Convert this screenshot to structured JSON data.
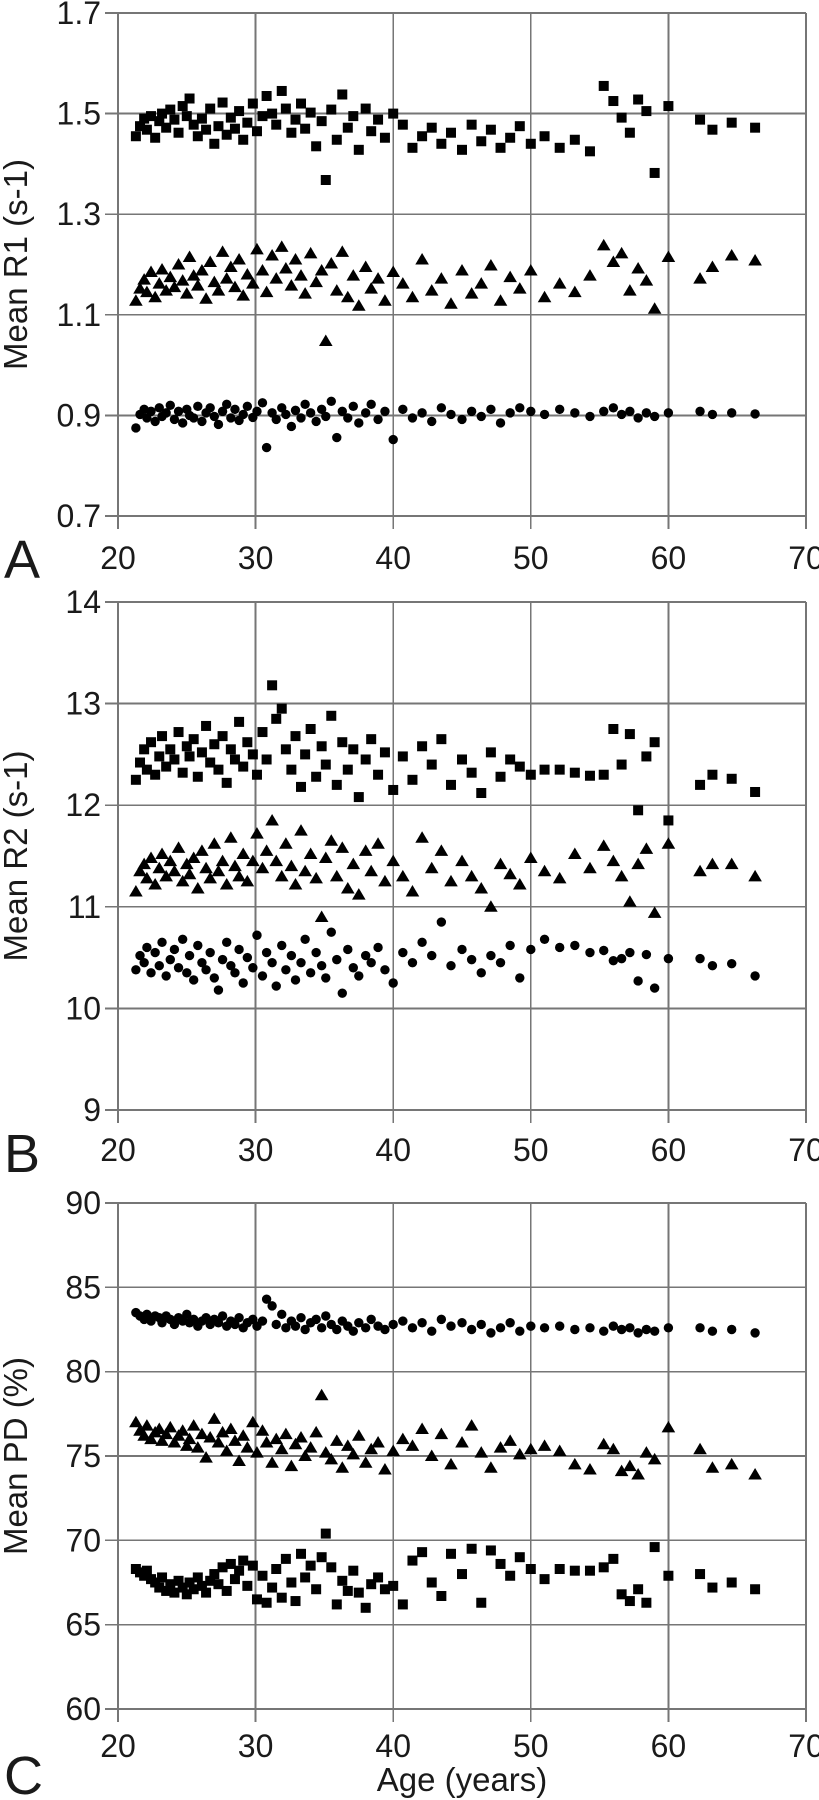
{
  "figure": {
    "background": "#ffffff",
    "marker_color": "#000000",
    "grid_color": "#767676",
    "text_color": "#1a1a1a",
    "x_axis_label": "Age (years)",
    "panel_letters": [
      "A",
      "B",
      "C"
    ]
  },
  "chart_data": {
    "type": "scatter",
    "xlabel": "Age (years)",
    "xlim": [
      20,
      70
    ],
    "xticks": [
      20,
      30,
      40,
      50,
      60,
      70
    ],
    "grid": true,
    "legend": "none",
    "ages": [
      21.3,
      21.6,
      21.9,
      22.1,
      22.4,
      22.7,
      23.0,
      23.2,
      23.5,
      23.8,
      24.1,
      24.4,
      24.7,
      25.0,
      25.2,
      25.5,
      25.8,
      26.1,
      26.4,
      26.7,
      27.0,
      27.3,
      27.6,
      27.9,
      28.2,
      28.5,
      28.8,
      29.1,
      29.4,
      29.8,
      30.1,
      30.5,
      30.8,
      31.2,
      31.5,
      31.9,
      32.2,
      32.6,
      32.9,
      33.3,
      33.6,
      34.0,
      34.4,
      34.8,
      35.1,
      35.5,
      35.9,
      36.3,
      36.7,
      37.1,
      37.5,
      38.0,
      38.4,
      38.9,
      39.4,
      40.0,
      40.7,
      41.4,
      42.1,
      42.8,
      43.5,
      44.2,
      45.0,
      45.7,
      46.4,
      47.1,
      47.8,
      48.5,
      49.2,
      50.0,
      51.0,
      52.1,
      53.2,
      54.3,
      55.3,
      56.0,
      56.6,
      57.2,
      57.8,
      58.4,
      59.0,
      60.0,
      62.3,
      63.2,
      64.6,
      66.3
    ],
    "panels": [
      {
        "label": "A",
        "ylabel": "Mean R1 (s-1)",
        "ylim": [
          0.7,
          1.7
        ],
        "yticks": [
          0.7,
          0.9,
          1.1,
          1.3,
          1.5,
          1.7
        ],
        "ytick_format": 1,
        "series": [
          {
            "marker": "square",
            "y": [
              1.455,
              1.475,
              1.49,
              1.468,
              1.495,
              1.452,
              1.485,
              1.5,
              1.472,
              1.508,
              1.488,
              1.462,
              1.515,
              1.495,
              1.53,
              1.478,
              1.455,
              1.49,
              1.468,
              1.51,
              1.44,
              1.475,
              1.522,
              1.458,
              1.492,
              1.47,
              1.505,
              1.448,
              1.482,
              1.52,
              1.465,
              1.495,
              1.535,
              1.5,
              1.478,
              1.545,
              1.51,
              1.462,
              1.488,
              1.52,
              1.47,
              1.502,
              1.435,
              1.485,
              1.368,
              1.508,
              1.448,
              1.538,
              1.472,
              1.495,
              1.428,
              1.51,
              1.465,
              1.488,
              1.452,
              1.5,
              1.478,
              1.432,
              1.455,
              1.472,
              1.44,
              1.462,
              1.428,
              1.478,
              1.445,
              1.468,
              1.432,
              1.452,
              1.475,
              1.44,
              1.455,
              1.432,
              1.448,
              1.425,
              1.555,
              1.525,
              1.492,
              1.462,
              1.528,
              1.505,
              1.382,
              1.515,
              1.488,
              1.468,
              1.482,
              1.472
            ]
          },
          {
            "marker": "triangle",
            "y": [
              1.128,
              1.152,
              1.17,
              1.145,
              1.185,
              1.135,
              1.162,
              1.19,
              1.148,
              1.175,
              1.155,
              1.2,
              1.168,
              1.142,
              1.215,
              1.178,
              1.158,
              1.188,
              1.132,
              1.205,
              1.165,
              1.148,
              1.225,
              1.172,
              1.195,
              1.155,
              1.21,
              1.138,
              1.18,
              1.162,
              1.23,
              1.188,
              1.145,
              1.218,
              1.172,
              1.235,
              1.192,
              1.158,
              1.21,
              1.178,
              1.142,
              1.222,
              1.165,
              1.188,
              1.048,
              1.202,
              1.148,
              1.225,
              1.135,
              1.178,
              1.118,
              1.195,
              1.152,
              1.172,
              1.128,
              1.185,
              1.162,
              1.135,
              1.21,
              1.148,
              1.172,
              1.122,
              1.188,
              1.142,
              1.162,
              1.198,
              1.128,
              1.175,
              1.152,
              1.188,
              1.135,
              1.162,
              1.145,
              1.178,
              1.238,
              1.205,
              1.222,
              1.148,
              1.192,
              1.168,
              1.112,
              1.215,
              1.172,
              1.195,
              1.218,
              1.208
            ]
          },
          {
            "marker": "circle",
            "y": [
              0.875,
              0.902,
              0.912,
              0.895,
              0.908,
              0.888,
              0.915,
              0.898,
              0.905,
              0.92,
              0.892,
              0.908,
              0.885,
              0.912,
              0.9,
              0.895,
              0.918,
              0.888,
              0.905,
              0.915,
              0.898,
              0.882,
              0.908,
              0.922,
              0.895,
              0.912,
              0.89,
              0.902,
              0.918,
              0.896,
              0.908,
              0.925,
              0.836,
              0.905,
              0.892,
              0.915,
              0.902,
              0.878,
              0.91,
              0.895,
              0.922,
              0.905,
              0.888,
              0.912,
              0.898,
              0.928,
              0.856,
              0.908,
              0.895,
              0.918,
              0.885,
              0.905,
              0.922,
              0.892,
              0.908,
              0.852,
              0.912,
              0.895,
              0.905,
              0.888,
              0.915,
              0.902,
              0.892,
              0.908,
              0.898,
              0.912,
              0.885,
              0.905,
              0.915,
              0.908,
              0.902,
              0.912,
              0.905,
              0.898,
              0.908,
              0.915,
              0.902,
              0.908,
              0.895,
              0.905,
              0.898,
              0.905,
              0.908,
              0.902,
              0.905,
              0.903
            ]
          }
        ]
      },
      {
        "label": "B",
        "ylabel": "Mean R2 (s-1)",
        "ylim": [
          9,
          14
        ],
        "yticks": [
          9,
          10,
          11,
          12,
          13,
          14
        ],
        "ytick_format": 0,
        "series": [
          {
            "marker": "square",
            "y": [
              12.25,
              12.42,
              12.55,
              12.35,
              12.62,
              12.3,
              12.48,
              12.68,
              12.38,
              12.55,
              12.45,
              12.72,
              12.32,
              12.58,
              12.48,
              12.65,
              12.28,
              12.52,
              12.78,
              12.42,
              12.6,
              12.35,
              12.68,
              12.22,
              12.55,
              12.45,
              12.82,
              12.38,
              12.62,
              12.5,
              12.3,
              12.72,
              12.45,
              13.18,
              12.85,
              12.95,
              12.55,
              12.35,
              12.68,
              12.18,
              12.5,
              12.75,
              12.28,
              12.58,
              12.4,
              12.88,
              12.2,
              12.62,
              12.35,
              12.55,
              12.08,
              12.45,
              12.65,
              12.3,
              12.52,
              12.15,
              12.48,
              12.25,
              12.58,
              12.4,
              12.65,
              12.2,
              12.45,
              12.32,
              12.12,
              12.52,
              12.28,
              12.45,
              12.38,
              12.3,
              12.35,
              12.35,
              12.32,
              12.29,
              12.3,
              12.75,
              12.4,
              12.7,
              11.95,
              12.48,
              12.62,
              11.85,
              12.2,
              12.3,
              12.26,
              12.13
            ]
          },
          {
            "marker": "triangle",
            "y": [
              11.15,
              11.35,
              11.42,
              11.28,
              11.48,
              11.22,
              11.38,
              11.52,
              11.3,
              11.45,
              11.35,
              11.58,
              11.25,
              11.42,
              11.32,
              11.48,
              11.18,
              11.55,
              11.38,
              11.28,
              11.62,
              11.35,
              11.45,
              11.22,
              11.68,
              11.4,
              11.3,
              11.52,
              11.25,
              11.45,
              11.72,
              11.38,
              11.55,
              11.85,
              11.45,
              11.3,
              11.62,
              11.4,
              11.22,
              11.75,
              11.35,
              11.52,
              11.28,
              10.9,
              11.48,
              11.65,
              11.3,
              11.58,
              11.18,
              11.42,
              11.12,
              11.55,
              11.35,
              11.62,
              11.25,
              11.45,
              11.3,
              11.15,
              11.68,
              11.38,
              11.55,
              11.25,
              11.45,
              11.3,
              11.18,
              11.0,
              11.42,
              11.32,
              11.22,
              11.48,
              11.35,
              11.28,
              11.52,
              11.38,
              11.6,
              11.45,
              11.3,
              11.05,
              11.42,
              11.57,
              10.94,
              11.62,
              11.35,
              11.42,
              11.42,
              11.3
            ]
          },
          {
            "marker": "circle",
            "y": [
              10.38,
              10.52,
              10.45,
              10.6,
              10.35,
              10.55,
              10.42,
              10.65,
              10.32,
              10.48,
              10.58,
              10.4,
              10.68,
              10.35,
              10.52,
              10.28,
              10.62,
              10.45,
              10.38,
              10.55,
              10.3,
              10.18,
              10.48,
              10.65,
              10.42,
              10.35,
              10.58,
              10.25,
              10.5,
              10.4,
              10.72,
              10.32,
              10.55,
              10.45,
              10.22,
              10.62,
              10.38,
              10.52,
              10.28,
              10.45,
              10.68,
              10.35,
              10.55,
              10.42,
              10.3,
              10.75,
              10.48,
              10.15,
              10.58,
              10.4,
              10.32,
              10.52,
              10.45,
              10.6,
              10.38,
              10.25,
              10.55,
              10.45,
              10.65,
              10.52,
              10.85,
              10.42,
              10.58,
              10.48,
              10.35,
              10.52,
              10.45,
              10.62,
              10.3,
              10.58,
              10.68,
              10.6,
              10.62,
              10.55,
              10.57,
              10.47,
              10.49,
              10.55,
              10.27,
              10.53,
              10.2,
              10.49,
              10.49,
              10.42,
              10.44,
              10.32
            ]
          }
        ]
      },
      {
        "label": "C",
        "ylabel": "Mean PD (%)",
        "ylim": [
          60,
          90
        ],
        "yticks": [
          60,
          65,
          70,
          75,
          80,
          85,
          90
        ],
        "ytick_format": 0,
        "series": [
          {
            "marker": "circle",
            "y": [
              83.5,
              83.3,
              83.1,
              83.4,
              83.0,
              83.3,
              83.2,
              82.9,
              83.3,
              83.1,
              82.8,
              83.2,
              83.0,
              83.4,
              82.9,
              83.1,
              82.7,
              83.0,
              83.2,
              82.8,
              83.1,
              82.9,
              83.3,
              82.7,
              83.0,
              82.8,
              83.2,
              82.6,
              82.9,
              83.1,
              82.7,
              83.0,
              84.3,
              83.9,
              82.8,
              83.4,
              82.6,
              83.0,
              82.7,
              83.2,
              82.5,
              82.9,
              83.1,
              82.6,
              83.3,
              82.8,
              82.5,
              83.0,
              82.7,
              82.4,
              82.9,
              82.6,
              83.1,
              82.7,
              82.5,
              82.8,
              83.0,
              82.6,
              82.9,
              82.4,
              83.1,
              82.7,
              82.9,
              82.5,
              82.8,
              82.3,
              82.6,
              82.9,
              82.4,
              82.7,
              82.6,
              82.7,
              82.5,
              82.6,
              82.4,
              82.7,
              82.5,
              82.6,
              82.3,
              82.5,
              82.4,
              82.6,
              82.6,
              82.4,
              82.5,
              82.3
            ]
          },
          {
            "marker": "triangle",
            "y": [
              77.0,
              76.5,
              76.2,
              76.8,
              76.0,
              76.4,
              76.6,
              75.9,
              76.3,
              76.7,
              75.8,
              76.2,
              76.5,
              75.6,
              76.0,
              76.8,
              75.5,
              76.3,
              74.9,
              76.1,
              77.2,
              75.8,
              76.4,
              75.3,
              76.6,
              75.9,
              74.7,
              76.2,
              75.5,
              77.0,
              75.2,
              76.5,
              75.8,
              74.6,
              76.0,
              75.4,
              76.3,
              74.4,
              75.7,
              76.1,
              75.0,
              75.5,
              76.4,
              78.6,
              75.2,
              74.8,
              75.9,
              74.3,
              75.6,
              75.1,
              76.2,
              74.6,
              75.4,
              75.8,
              74.2,
              75.3,
              76.0,
              75.6,
              76.6,
              75.0,
              76.3,
              74.5,
              75.8,
              76.8,
              75.2,
              74.3,
              75.5,
              75.9,
              75.1,
              75.4,
              75.6,
              75.3,
              74.5,
              74.2,
              75.7,
              75.4,
              74.1,
              74.4,
              73.9,
              75.2,
              74.8,
              76.7,
              75.4,
              74.3,
              74.5,
              73.9
            ]
          },
          {
            "marker": "square",
            "y": [
              68.3,
              68.1,
              67.9,
              68.2,
              67.7,
              67.5,
              67.2,
              67.8,
              67.0,
              67.4,
              66.9,
              67.6,
              67.2,
              66.8,
              67.5,
              67.1,
              67.8,
              67.3,
              66.9,
              67.6,
              68.0,
              67.4,
              68.4,
              67.0,
              68.6,
              67.7,
              68.2,
              68.8,
              67.3,
              68.5,
              66.5,
              67.9,
              66.3,
              67.2,
              68.3,
              66.6,
              68.9,
              67.5,
              66.4,
              69.2,
              67.8,
              68.5,
              67.1,
              69.0,
              70.4,
              68.4,
              66.2,
              67.6,
              67.0,
              68.2,
              66.9,
              66.0,
              67.4,
              67.8,
              67.1,
              67.3,
              66.2,
              68.8,
              69.3,
              67.5,
              66.7,
              69.2,
              68.0,
              69.5,
              66.3,
              69.4,
              68.6,
              67.9,
              69.0,
              68.3,
              67.7,
              68.3,
              68.2,
              68.2,
              68.4,
              68.9,
              66.8,
              66.4,
              67.1,
              66.3,
              69.6,
              67.9,
              68.0,
              67.2,
              67.5,
              67.1
            ]
          }
        ]
      }
    ]
  }
}
